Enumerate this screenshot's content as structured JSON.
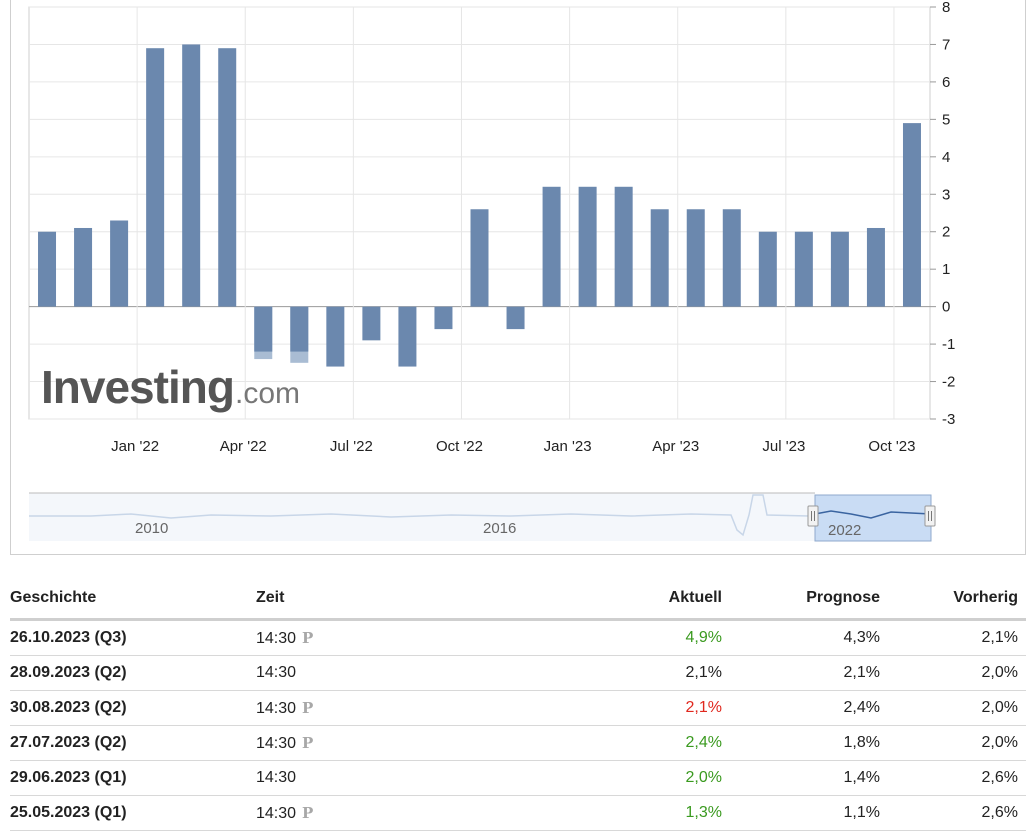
{
  "chart_data": {
    "type": "bar",
    "color": "#6b88ae",
    "preliminary_color": "#a9bcd3",
    "values": [
      2.0,
      2.1,
      2.3,
      6.9,
      7.0,
      6.9,
      -1.2,
      -1.2,
      -1.6,
      -0.9,
      -1.6,
      -0.6,
      2.6,
      -0.6,
      3.2,
      3.2,
      3.2,
      2.6,
      2.6,
      2.6,
      2.0,
      2.0,
      2.0,
      2.1,
      4.9
    ],
    "preliminary_values": [
      null,
      null,
      null,
      null,
      null,
      null,
      -1.4,
      -1.5,
      null,
      null,
      null,
      null,
      null,
      null,
      null,
      null,
      null,
      null,
      null,
      null,
      null,
      null,
      null,
      null,
      null
    ],
    "x_tick_labels": [
      {
        "label": "Jan '22",
        "after_bar": 2
      },
      {
        "label": "Apr '22",
        "after_bar": 5
      },
      {
        "label": "Jul '22",
        "after_bar": 8
      },
      {
        "label": "Oct '22",
        "after_bar": 11
      },
      {
        "label": "Jan '23",
        "after_bar": 14
      },
      {
        "label": "Apr '23",
        "after_bar": 17
      },
      {
        "label": "Jul '23",
        "after_bar": 20
      },
      {
        "label": "Oct '23",
        "after_bar": 23
      }
    ],
    "y_ticks": [
      8,
      7,
      6,
      5,
      4,
      3,
      2,
      1,
      0,
      -1,
      -2,
      -3
    ],
    "ylim": [
      -3,
      8
    ],
    "y_axis_position": "right",
    "grid": true,
    "watermark": {
      "main": "Investing",
      "suffix": ".com"
    },
    "navigator": {
      "labels": [
        "2010",
        "2016",
        "2022"
      ],
      "selected_range_label": "2022"
    }
  },
  "table": {
    "headers": {
      "date": "Geschichte",
      "time": "Zeit",
      "actual": "Aktuell",
      "forecast": "Prognose",
      "previous": "Vorherig"
    },
    "prelim_marker": "P",
    "rows": [
      {
        "date": "26.10.2023 (Q3)",
        "time": "14:30",
        "prelim": true,
        "actual": "4,9%",
        "actual_status": "up",
        "forecast": "4,3%",
        "previous": "2,1%"
      },
      {
        "date": "28.09.2023 (Q2)",
        "time": "14:30",
        "prelim": false,
        "actual": "2,1%",
        "actual_status": "neutral",
        "forecast": "2,1%",
        "previous": "2,0%"
      },
      {
        "date": "30.08.2023 (Q2)",
        "time": "14:30",
        "prelim": true,
        "actual": "2,1%",
        "actual_status": "down",
        "forecast": "2,4%",
        "previous": "2,0%"
      },
      {
        "date": "27.07.2023 (Q2)",
        "time": "14:30",
        "prelim": true,
        "actual": "2,4%",
        "actual_status": "up",
        "forecast": "1,8%",
        "previous": "2,0%"
      },
      {
        "date": "29.06.2023 (Q1)",
        "time": "14:30",
        "prelim": false,
        "actual": "2,0%",
        "actual_status": "up",
        "forecast": "1,4%",
        "previous": "2,6%"
      },
      {
        "date": "25.05.2023 (Q1)",
        "time": "14:30",
        "prelim": true,
        "actual": "1,3%",
        "actual_status": "up",
        "forecast": "1,1%",
        "previous": "2,6%"
      }
    ]
  }
}
